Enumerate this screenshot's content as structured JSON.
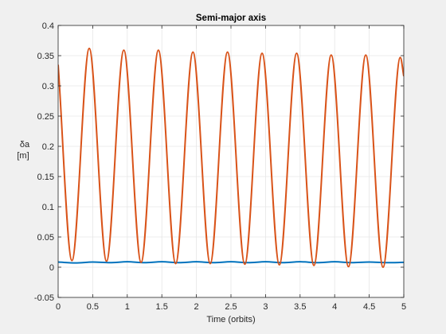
{
  "chart_data": {
    "type": "line",
    "title": "Semi-major axis",
    "xlabel": "Time (orbits)",
    "ylabel_line1": "δa",
    "ylabel_line2": "[m]",
    "xlim": [
      0,
      5
    ],
    "ylim": [
      -0.05,
      0.4
    ],
    "grid": true,
    "xticks": [
      0,
      0.5,
      1,
      1.5,
      2,
      2.5,
      3,
      3.5,
      4,
      4.5,
      5
    ],
    "xtick_labels": [
      "0",
      "0.5",
      "1",
      "1.5",
      "2",
      "2.5",
      "3",
      "3.5",
      "4",
      "4.5",
      "5"
    ],
    "yticks": [
      -0.05,
      0,
      0.05,
      0.1,
      0.15,
      0.2,
      0.25,
      0.3,
      0.35,
      0.4
    ],
    "ytick_labels": [
      "-0.05",
      "0",
      "0.05",
      "0.1",
      "0.15",
      "0.2",
      "0.25",
      "0.3",
      "0.35",
      "0.4"
    ],
    "series": [
      {
        "color": "#0072BD",
        "x": [
          0,
          0.25,
          0.5,
          0.75,
          1,
          1.25,
          1.5,
          1.75,
          2,
          2.25,
          2.5,
          2.75,
          3,
          3.25,
          3.5,
          3.75,
          4,
          4.25,
          4.5,
          4.75,
          5
        ],
        "y": [
          0.0085,
          0.007,
          0.0085,
          0.0075,
          0.009,
          0.0075,
          0.009,
          0.0075,
          0.009,
          0.0075,
          0.009,
          0.0075,
          0.009,
          0.0075,
          0.009,
          0.0075,
          0.009,
          0.0075,
          0.0085,
          0.0075,
          0.008
        ]
      },
      {
        "color": "#D95319",
        "x": [
          0,
          0.2,
          0.45,
          0.7,
          0.95,
          1.2,
          1.45,
          1.7,
          1.95,
          2.2,
          2.45,
          2.7,
          2.95,
          3.2,
          3.45,
          3.7,
          3.95,
          4.2,
          4.45,
          4.7,
          4.95,
          5
        ],
        "y": [
          0.335,
          0.011,
          0.362,
          0.01,
          0.359,
          0.008,
          0.359,
          0.006,
          0.356,
          0.006,
          0.356,
          0.005,
          0.354,
          0.004,
          0.354,
          0.003,
          0.351,
          0.001,
          0.351,
          0.0,
          0.347,
          0.316
        ]
      }
    ]
  }
}
